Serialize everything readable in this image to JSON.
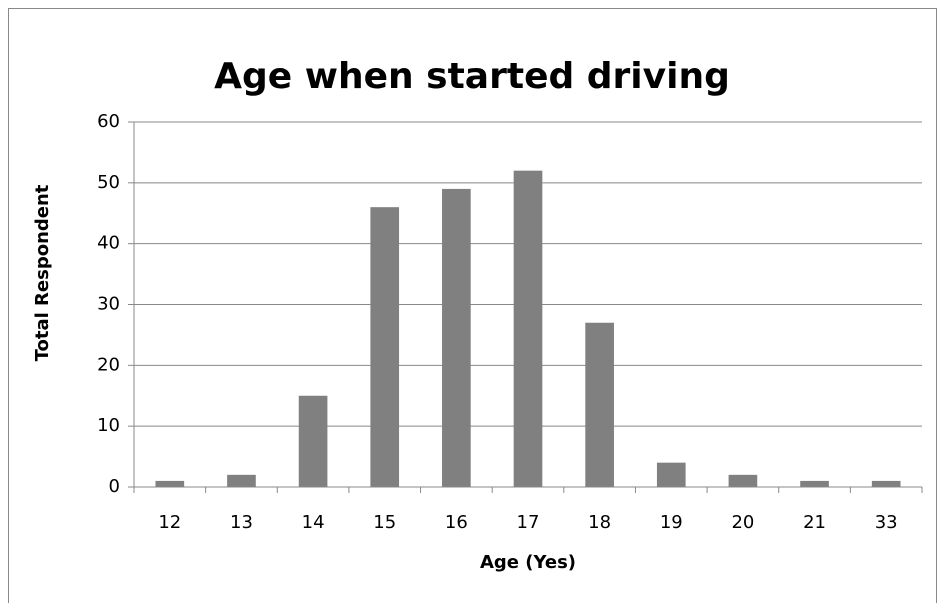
{
  "chart_data": {
    "type": "bar",
    "title": "Age when started driving",
    "x_label": "Age (Yes)",
    "y_label": "Total Respondent",
    "categories": [
      "12",
      "13",
      "14",
      "15",
      "16",
      "17",
      "18",
      "19",
      "20",
      "21",
      "33"
    ],
    "values": [
      1,
      2,
      15,
      46,
      49,
      52,
      27,
      4,
      2,
      1,
      1
    ],
    "color": "#808080",
    "ylim": [
      0,
      60
    ],
    "yticks": [
      0,
      10,
      20,
      30,
      40,
      50,
      60
    ],
    "grid": true
  }
}
